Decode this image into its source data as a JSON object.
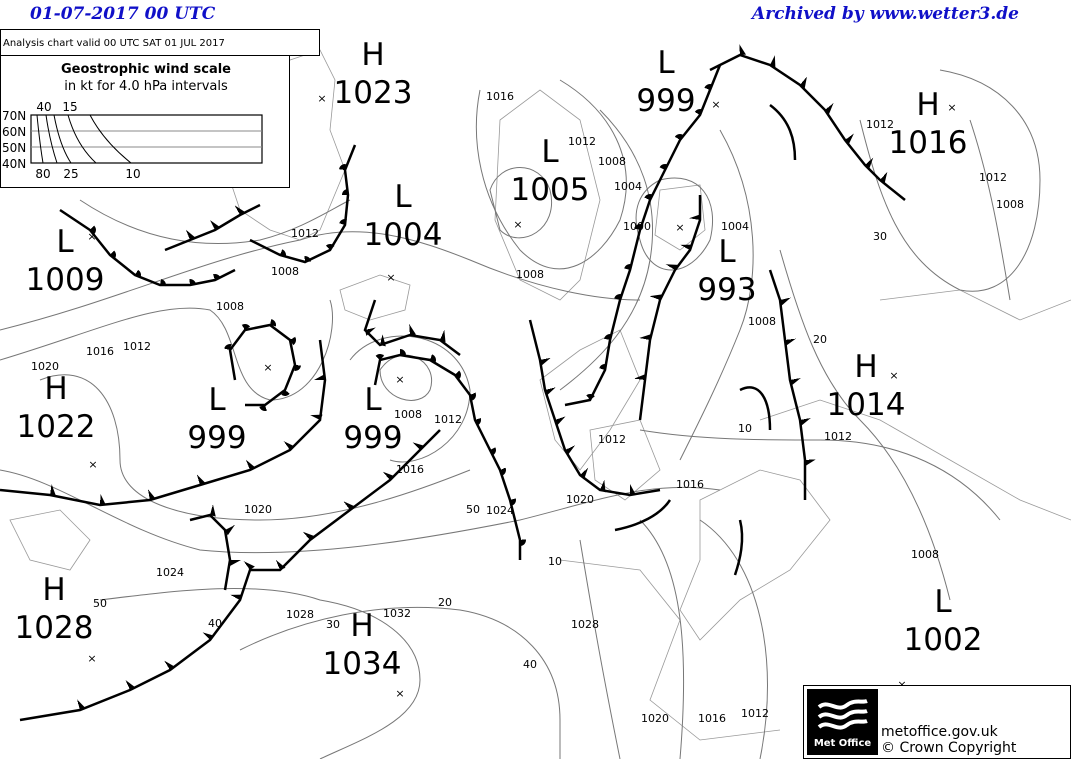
{
  "header": {
    "date_label": "01-07-2017  00 UTC",
    "archive_label": "Archived by www.wetter3.de"
  },
  "chart_info": {
    "valid_text": "Analysis chart  valid 00 UTC SAT 01  JUL 2017"
  },
  "wind_scale": {
    "title": "Geostrophic wind scale",
    "subtitle": "in kt for 4.0 hPa intervals",
    "top_ticks": [
      "40",
      "15"
    ],
    "bottom_ticks": [
      "80",
      "25",
      "10"
    ],
    "latitudes": [
      "70N",
      "60N",
      "50N",
      "40N"
    ]
  },
  "pressure_centres": [
    {
      "type": "H",
      "value": "1023"
    },
    {
      "type": "L",
      "value": "999"
    },
    {
      "type": "H",
      "value": "1016"
    },
    {
      "type": "L",
      "value": "1005"
    },
    {
      "type": "L",
      "value": "1004"
    },
    {
      "type": "L",
      "value": "1009"
    },
    {
      "type": "L",
      "value": "993"
    },
    {
      "type": "H",
      "value": "1014"
    },
    {
      "type": "L",
      "value": "999"
    },
    {
      "type": "L",
      "value": "999"
    },
    {
      "type": "H",
      "value": "1022"
    },
    {
      "type": "H",
      "value": "1028"
    },
    {
      "type": "H",
      "value": "1034"
    },
    {
      "type": "L",
      "value": "1002"
    }
  ],
  "isobar_labels": [
    "1016",
    "1012",
    "1008",
    "1004",
    "1000",
    "1004",
    "1008",
    "1012",
    "1008",
    "1008",
    "1016",
    "1012",
    "1020",
    "1008",
    "1012",
    "1016",
    "1024",
    "1020",
    "1012",
    "1016",
    "1012",
    "1020",
    "1024",
    "1028",
    "1032",
    "1028",
    "1020",
    "1016",
    "1012",
    "1008",
    "1012",
    "1012",
    "1008",
    "1008"
  ],
  "wind_labels": [
    "50",
    "10",
    "20",
    "30",
    "40",
    "50",
    "40",
    "10",
    "20",
    "30"
  ],
  "footer": {
    "logo_text": "Met Office",
    "site": "metoffice.gov.uk",
    "copyright": "© Crown Copyright"
  }
}
